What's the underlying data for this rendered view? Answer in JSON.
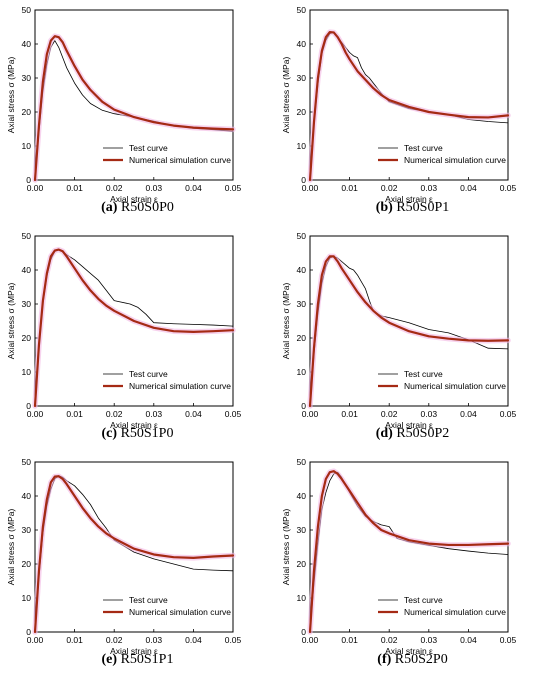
{
  "chart_data": [
    {
      "type": "line",
      "panel_label": "(a)",
      "title": "R50S0P0",
      "xlabel": "Axial strain ε",
      "ylabel": "Axial stress σ (MPa)",
      "xlim": [
        0,
        0.05
      ],
      "ylim": [
        0,
        50
      ],
      "xticks": [
        "0.00",
        "0.01",
        "0.02",
        "0.03",
        "0.04",
        "0.05"
      ],
      "yticks": [
        "0",
        "10",
        "20",
        "30",
        "40",
        "50"
      ],
      "legend_position": "lower-right",
      "series": [
        {
          "name": "Test curve",
          "color": "#000000",
          "style": "thin",
          "x": [
            0,
            0.001,
            0.002,
            0.003,
            0.004,
            0.005,
            0.006,
            0.007,
            0.008,
            0.01,
            0.012,
            0.014,
            0.017,
            0.02,
            0.025,
            0.03,
            0.035,
            0.04,
            0.045,
            0.05
          ],
          "y": [
            0,
            14,
            26,
            34,
            39,
            41,
            39,
            36,
            33,
            28.5,
            25,
            22.5,
            20.5,
            19.5,
            18.5,
            17.3,
            16,
            15.2,
            14.8,
            14.3
          ]
        },
        {
          "name": "Numerical simulation curve",
          "color": "#a52a14",
          "style": "thick",
          "x": [
            0,
            0.001,
            0.002,
            0.003,
            0.004,
            0.005,
            0.006,
            0.007,
            0.008,
            0.01,
            0.012,
            0.014,
            0.017,
            0.02,
            0.025,
            0.03,
            0.035,
            0.04,
            0.045,
            0.05
          ],
          "y": [
            0,
            16,
            29,
            37,
            41,
            42.3,
            42,
            40.5,
            38,
            33.5,
            29.5,
            26.5,
            23,
            20.7,
            18.5,
            17,
            16,
            15.4,
            15.1,
            14.9
          ]
        }
      ]
    },
    {
      "type": "line",
      "panel_label": "(b)",
      "title": "R50S0P1",
      "xlabel": "Axial strain ε",
      "ylabel": "Axial stress σ (MPa)",
      "xlim": [
        0,
        0.05
      ],
      "ylim": [
        0,
        50
      ],
      "xticks": [
        "0.00",
        "0.01",
        "0.02",
        "0.03",
        "0.04",
        "0.05"
      ],
      "yticks": [
        "0",
        "10",
        "20",
        "30",
        "40",
        "50"
      ],
      "legend_position": "lower-right",
      "series": [
        {
          "name": "Test curve",
          "color": "#000000",
          "style": "thin",
          "x": [
            0,
            0.001,
            0.002,
            0.003,
            0.004,
            0.005,
            0.006,
            0.007,
            0.008,
            0.009,
            0.01,
            0.011,
            0.012,
            0.013,
            0.014,
            0.015,
            0.016,
            0.018,
            0.02,
            0.025,
            0.03,
            0.035,
            0.04,
            0.045,
            0.05
          ],
          "y": [
            0,
            16,
            28,
            37,
            41,
            43,
            43.5,
            42,
            40.5,
            39,
            37.5,
            36.5,
            36,
            33,
            31,
            30,
            28.5,
            25.5,
            23,
            21,
            20,
            19.2,
            17.8,
            17.2,
            16.8
          ]
        },
        {
          "name": "Numerical simulation curve",
          "color": "#a52a14",
          "style": "thick",
          "x": [
            0,
            0.001,
            0.002,
            0.003,
            0.004,
            0.005,
            0.006,
            0.007,
            0.008,
            0.009,
            0.01,
            0.012,
            0.014,
            0.016,
            0.018,
            0.02,
            0.025,
            0.03,
            0.035,
            0.04,
            0.045,
            0.05
          ],
          "y": [
            0,
            17,
            30,
            38,
            42,
            43.5,
            43.4,
            42,
            40,
            37.5,
            35.5,
            32,
            29.5,
            27,
            25,
            23.5,
            21.5,
            20,
            19.2,
            18.5,
            18.4,
            19
          ]
        }
      ]
    },
    {
      "type": "line",
      "panel_label": "(c)",
      "title": "R50S1P0",
      "xlabel": "Axial strain ε",
      "ylabel": "Axial stress σ (MPa)",
      "xlim": [
        0,
        0.05
      ],
      "ylim": [
        0,
        50
      ],
      "xticks": [
        "0.00",
        "0.01",
        "0.02",
        "0.03",
        "0.04",
        "0.05"
      ],
      "yticks": [
        "0",
        "10",
        "20",
        "30",
        "40",
        "50"
      ],
      "legend_position": "lower-right",
      "series": [
        {
          "name": "Test curve",
          "color": "#000000",
          "style": "thin",
          "x": [
            0,
            0.001,
            0.002,
            0.003,
            0.004,
            0.005,
            0.006,
            0.007,
            0.008,
            0.01,
            0.012,
            0.014,
            0.016,
            0.018,
            0.02,
            0.024,
            0.026,
            0.028,
            0.03,
            0.035,
            0.04,
            0.045,
            0.05
          ],
          "y": [
            0,
            17,
            30,
            38,
            43,
            45.5,
            46,
            45.5,
            44.5,
            43,
            41,
            39,
            37,
            34,
            31,
            30,
            29,
            27,
            24.5,
            24.2,
            24,
            23.8,
            23.5
          ]
        },
        {
          "name": "Numerical simulation curve",
          "color": "#a52a14",
          "style": "thick",
          "x": [
            0,
            0.001,
            0.002,
            0.003,
            0.004,
            0.005,
            0.006,
            0.007,
            0.008,
            0.01,
            0.012,
            0.014,
            0.016,
            0.018,
            0.02,
            0.025,
            0.03,
            0.035,
            0.04,
            0.045,
            0.05
          ],
          "y": [
            0,
            18,
            31,
            39,
            44,
            45.7,
            46,
            45.5,
            44,
            40.5,
            37,
            34,
            31.5,
            29.5,
            28,
            25,
            23,
            22,
            21.8,
            22,
            22.3
          ]
        }
      ]
    },
    {
      "type": "line",
      "panel_label": "(d)",
      "title": "R50S0P2",
      "xlabel": "Axial strain ε",
      "ylabel": "Axial stress σ (MPa)",
      "xlim": [
        0,
        0.05
      ],
      "ylim": [
        0,
        50
      ],
      "xticks": [
        "0.00",
        "0.01",
        "0.02",
        "0.03",
        "0.04",
        "0.05"
      ],
      "yticks": [
        "0",
        "10",
        "20",
        "30",
        "40",
        "50"
      ],
      "legend_position": "lower-right",
      "series": [
        {
          "name": "Test curve",
          "color": "#000000",
          "style": "thin",
          "x": [
            0,
            0.001,
            0.002,
            0.003,
            0.004,
            0.005,
            0.006,
            0.007,
            0.008,
            0.009,
            0.01,
            0.011,
            0.012,
            0.013,
            0.014,
            0.015,
            0.016,
            0.018,
            0.02,
            0.025,
            0.03,
            0.035,
            0.04,
            0.045,
            0.05
          ],
          "y": [
            0,
            15,
            27,
            36,
            41,
            43.5,
            44,
            43.5,
            42.5,
            41.5,
            40.5,
            40,
            38.5,
            36.5,
            34.5,
            31,
            28,
            26.5,
            26,
            24.5,
            22.5,
            21.5,
            19.5,
            17,
            16.8
          ]
        },
        {
          "name": "Numerical simulation curve",
          "color": "#a52a14",
          "style": "thick",
          "x": [
            0,
            0.001,
            0.002,
            0.003,
            0.004,
            0.005,
            0.006,
            0.007,
            0.008,
            0.01,
            0.012,
            0.014,
            0.016,
            0.018,
            0.02,
            0.025,
            0.03,
            0.035,
            0.04,
            0.045,
            0.05
          ],
          "y": [
            0,
            17,
            30,
            38.5,
            42.5,
            44,
            44,
            42.5,
            40.5,
            37,
            33.5,
            30.5,
            28,
            26,
            24.5,
            22,
            20.5,
            19.8,
            19.3,
            19.2,
            19.3
          ]
        }
      ]
    },
    {
      "type": "line",
      "panel_label": "(e)",
      "title": "R50S1P1",
      "xlabel": "Axial strain ε",
      "ylabel": "Axial stress σ (MPa)",
      "xlim": [
        0,
        0.05
      ],
      "ylim": [
        0,
        50
      ],
      "xticks": [
        "0.00",
        "0.01",
        "0.02",
        "0.03",
        "0.04",
        "0.05"
      ],
      "yticks": [
        "0",
        "10",
        "20",
        "30",
        "40",
        "50"
      ],
      "legend_position": "lower-right",
      "series": [
        {
          "name": "Test curve",
          "color": "#000000",
          "style": "thin",
          "x": [
            0,
            0.001,
            0.002,
            0.003,
            0.004,
            0.005,
            0.006,
            0.007,
            0.008,
            0.01,
            0.012,
            0.014,
            0.016,
            0.018,
            0.02,
            0.025,
            0.03,
            0.035,
            0.04,
            0.045,
            0.05
          ],
          "y": [
            0,
            16,
            29,
            37,
            42,
            45,
            46,
            45.5,
            44.5,
            43,
            40.5,
            37.5,
            33.5,
            30.5,
            27,
            23.5,
            21.5,
            20,
            18.5,
            18.2,
            18
          ]
        },
        {
          "name": "Numerical simulation curve",
          "color": "#a52a14",
          "style": "thick",
          "x": [
            0,
            0.001,
            0.002,
            0.003,
            0.004,
            0.005,
            0.006,
            0.007,
            0.008,
            0.01,
            0.012,
            0.014,
            0.016,
            0.018,
            0.02,
            0.025,
            0.03,
            0.035,
            0.04,
            0.045,
            0.05
          ],
          "y": [
            0,
            18,
            31,
            39,
            44,
            45.7,
            45.8,
            45,
            43.5,
            40,
            36.5,
            33.5,
            31,
            29,
            27.5,
            24.5,
            22.8,
            22,
            21.8,
            22.2,
            22.5
          ]
        }
      ]
    },
    {
      "type": "line",
      "panel_label": "(f)",
      "title": "R50S2P0",
      "xlabel": "Axial strain ε",
      "ylabel": "Axial stress σ (MPa)",
      "xlim": [
        0,
        0.05
      ],
      "ylim": [
        0,
        50
      ],
      "xticks": [
        "0.00",
        "0.01",
        "0.02",
        "0.03",
        "0.04",
        "0.05"
      ],
      "yticks": [
        "0",
        "10",
        "20",
        "30",
        "40",
        "50"
      ],
      "legend_position": "lower-right",
      "series": [
        {
          "name": "Test curve",
          "color": "#000000",
          "style": "thin",
          "x": [
            0,
            0.001,
            0.002,
            0.003,
            0.004,
            0.005,
            0.006,
            0.007,
            0.008,
            0.01,
            0.012,
            0.014,
            0.016,
            0.018,
            0.02,
            0.022,
            0.025,
            0.03,
            0.035,
            0.04,
            0.045,
            0.05
          ],
          "y": [
            0,
            14,
            26,
            36,
            41,
            44.5,
            46.5,
            47,
            45.5,
            41,
            37,
            34,
            32.5,
            31.5,
            31,
            27.5,
            26.5,
            25.5,
            24.5,
            23.8,
            23.2,
            22.8
          ]
        },
        {
          "name": "Numerical simulation curve",
          "color": "#a52a14",
          "style": "thick",
          "x": [
            0,
            0.001,
            0.002,
            0.003,
            0.004,
            0.005,
            0.006,
            0.007,
            0.008,
            0.01,
            0.012,
            0.014,
            0.016,
            0.018,
            0.02,
            0.025,
            0.03,
            0.035,
            0.04,
            0.045,
            0.05
          ],
          "y": [
            0,
            18,
            31,
            40,
            45,
            47,
            47.3,
            46.5,
            45,
            41.5,
            38,
            34.5,
            32,
            30,
            29,
            27,
            26,
            25.6,
            25.6,
            25.8,
            26
          ]
        }
      ]
    }
  ]
}
